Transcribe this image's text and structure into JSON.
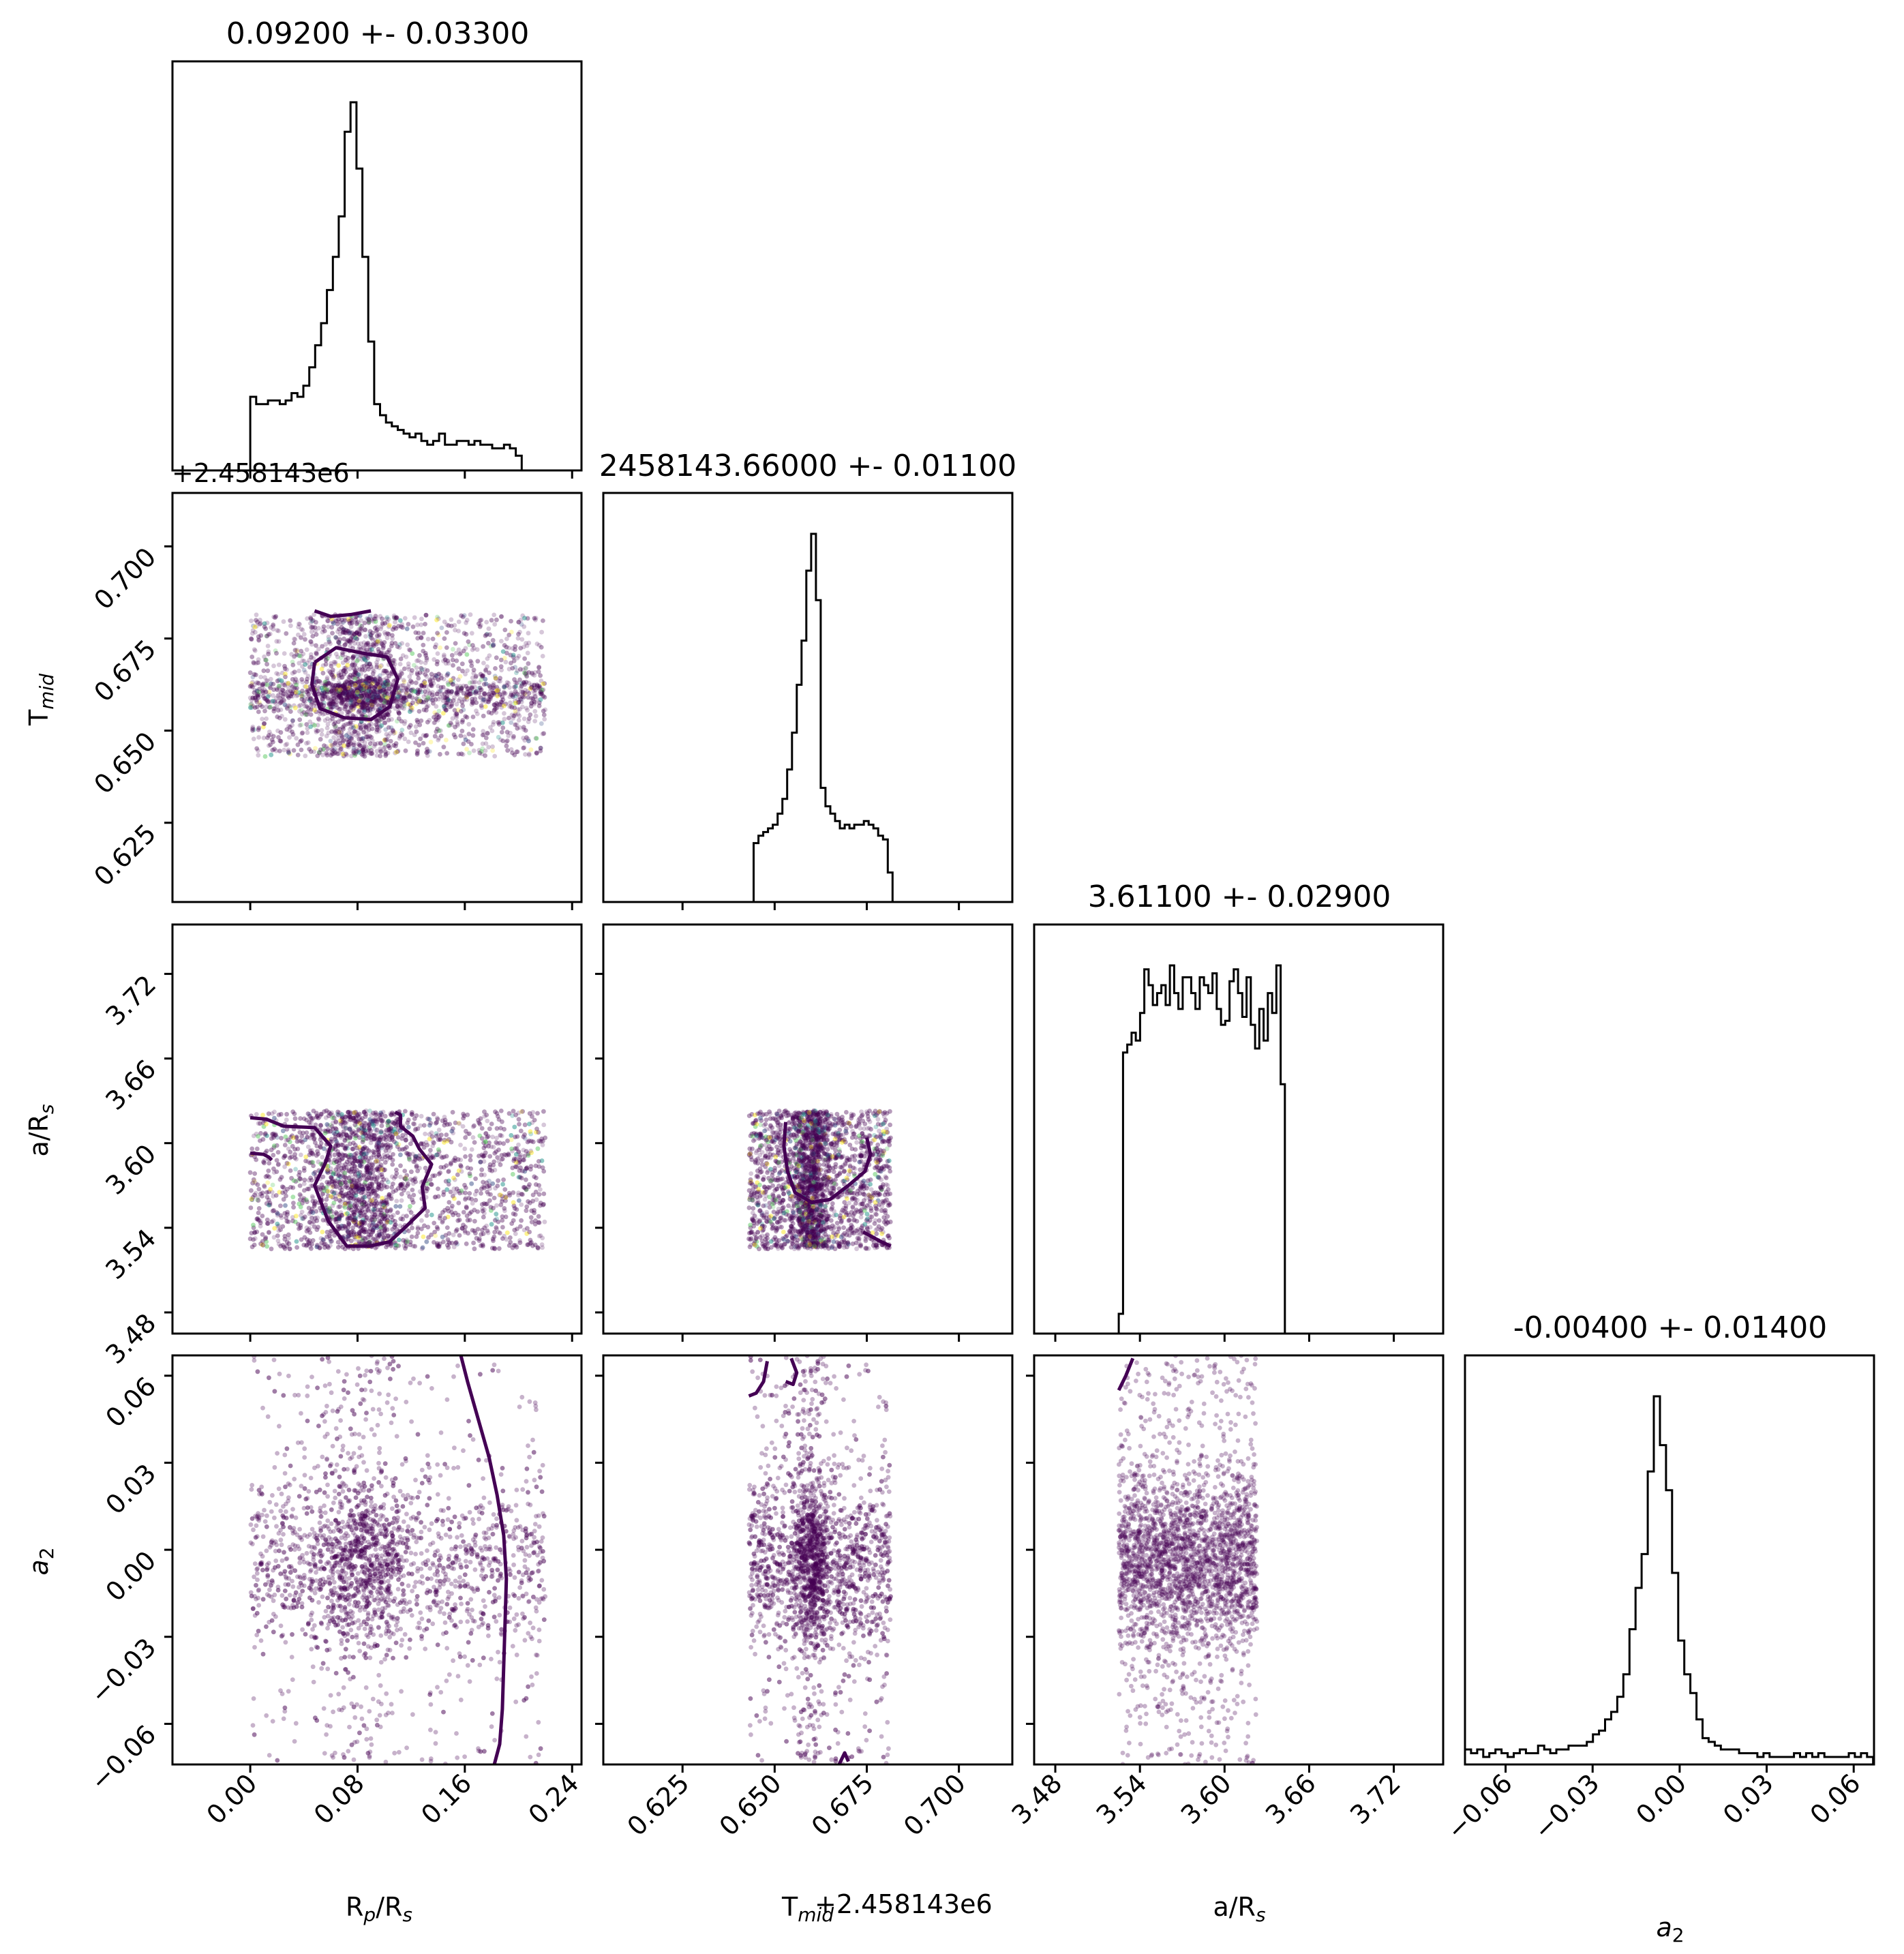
{
  "figure": {
    "title": "",
    "offset_label_x": "+2.458143e6",
    "offset_label_y": "+2.458143e6"
  },
  "colors": {
    "contour": "#440154",
    "scatter_main": "#440154",
    "scatter_speckles": [
      "#3b528b",
      "#21918c",
      "#5ec962",
      "#fde725"
    ],
    "hist_line": "#000000"
  },
  "chart_data": {
    "type": "corner",
    "parameters": [
      {
        "id": "rprs",
        "label": "R_p/R_s",
        "label_display": "Rp/Rs",
        "title": "0.09200 +- 0.03300",
        "range": [
          -0.058,
          0.247
        ],
        "ticks": [
          0.0,
          0.08,
          0.16,
          0.24
        ],
        "tick_labels": [
          "0.00",
          "0.08",
          "0.16",
          "0.24"
        ]
      },
      {
        "id": "tmid",
        "label": "T_mid",
        "label_display": "Tmid",
        "title": "2458143.66000 +- 0.01100",
        "range": [
          0.6035,
          0.7145
        ],
        "ticks": [
          0.625,
          0.65,
          0.675,
          0.7
        ],
        "tick_labels": [
          "0.625",
          "0.650",
          "0.675",
          "0.700"
        ],
        "offset": "+2.458143e6"
      },
      {
        "id": "ars",
        "label": "a/R_s",
        "label_display": "a/Rs",
        "title": "3.61100 +- 0.02900",
        "range": [
          3.465,
          3.755
        ],
        "ticks": [
          3.48,
          3.54,
          3.6,
          3.66,
          3.72
        ],
        "tick_labels": [
          "3.48",
          "3.54",
          "3.60",
          "3.66",
          "3.72"
        ]
      },
      {
        "id": "a2",
        "label": "a_2",
        "label_display": "a2",
        "title": "-0.00400 +- 0.01400",
        "range": [
          -0.074,
          0.067
        ],
        "ticks": [
          -0.06,
          -0.03,
          0.0,
          0.03,
          0.06
        ],
        "tick_labels": [
          "−0.06",
          "−0.03",
          "0.00",
          "0.03",
          "0.06"
        ]
      }
    ],
    "histograms": [
      {
        "param": "rprs",
        "bin_start": 0.0,
        "bin_width": 0.0044,
        "counts": [
          0.2,
          0.18,
          0.18,
          0.19,
          0.19,
          0.18,
          0.19,
          0.21,
          0.2,
          0.23,
          0.28,
          0.34,
          0.4,
          0.49,
          0.58,
          0.69,
          0.92,
          1.0,
          0.82,
          0.58,
          0.35,
          0.18,
          0.15,
          0.13,
          0.12,
          0.11,
          0.1,
          0.09,
          0.1,
          0.08,
          0.07,
          0.08,
          0.1,
          0.07,
          0.07,
          0.08,
          0.08,
          0.07,
          0.08,
          0.07,
          0.07,
          0.06,
          0.06,
          0.07,
          0.06,
          0.04,
          0.0,
          0.0
        ]
      },
      {
        "param": "tmid",
        "bin_start": 0.643,
        "bin_width": 0.0013,
        "counts": [
          0.0,
          0.16,
          0.18,
          0.19,
          0.2,
          0.21,
          0.24,
          0.28,
          0.36,
          0.46,
          0.59,
          0.71,
          0.9,
          1.0,
          0.82,
          0.31,
          0.26,
          0.24,
          0.22,
          0.2,
          0.21,
          0.2,
          0.21,
          0.21,
          0.22,
          0.21,
          0.2,
          0.18,
          0.17,
          0.08,
          0.0
        ]
      },
      {
        "param": "ars",
        "bin_start": 3.525,
        "bin_width": 0.00302,
        "counts": [
          0.05,
          0.71,
          0.73,
          0.76,
          0.74,
          0.81,
          0.92,
          0.88,
          0.83,
          0.86,
          0.88,
          0.83,
          0.93,
          0.86,
          0.82,
          0.9,
          0.9,
          0.86,
          0.82,
          0.9,
          0.88,
          0.86,
          0.91,
          0.82,
          0.78,
          0.79,
          0.89,
          0.92,
          0.86,
          0.8,
          0.9,
          0.78,
          0.72,
          0.82,
          0.74,
          0.86,
          0.81,
          0.93,
          0.63,
          0.0
        ]
      },
      {
        "param": "a2",
        "bin_start": -0.074,
        "bin_width": 0.0021,
        "counts": [
          0.04,
          0.03,
          0.04,
          0.02,
          0.03,
          0.04,
          0.03,
          0.02,
          0.03,
          0.04,
          0.03,
          0.03,
          0.05,
          0.04,
          0.03,
          0.04,
          0.04,
          0.05,
          0.05,
          0.05,
          0.06,
          0.08,
          0.09,
          0.12,
          0.14,
          0.18,
          0.24,
          0.36,
          0.47,
          0.56,
          0.78,
          0.98,
          0.85,
          0.73,
          0.51,
          0.33,
          0.24,
          0.19,
          0.12,
          0.07,
          0.06,
          0.05,
          0.04,
          0.04,
          0.04,
          0.03,
          0.03,
          0.03,
          0.02,
          0.03,
          0.02,
          0.02,
          0.02,
          0.02,
          0.03,
          0.02,
          0.03,
          0.02,
          0.03,
          0.02,
          0.02,
          0.02,
          0.02,
          0.03,
          0.02,
          0.03,
          0.02
        ]
      }
    ],
    "scatter_samples": {
      "rprs": {
        "uniform_range": [
          0.0,
          0.22
        ],
        "core_center": 0.082,
        "core_sigma": 0.018,
        "core_fraction": 0.35
      },
      "tmid": {
        "uniform_range": [
          0.643,
          0.6815
        ],
        "core_center": 0.66,
        "core_sigma": 0.0025,
        "core_fraction": 0.35
      },
      "ars": {
        "uniform_range": [
          3.525,
          3.623
        ]
      },
      "a2": {
        "center": -0.004,
        "sigma": 0.014,
        "tail": 0.25,
        "range": [
          -0.074,
          0.067
        ]
      }
    },
    "contours": [
      {
        "panel": "tmid_vs_rprs",
        "x": [
          0.048,
          0.064,
          0.084,
          0.102,
          0.11,
          0.104,
          0.09,
          0.07,
          0.052,
          0.046,
          0.048
        ],
        "y": [
          0.6685,
          0.6725,
          0.671,
          0.67,
          0.664,
          0.6565,
          0.653,
          0.6535,
          0.656,
          0.6625,
          0.6685
        ]
      },
      {
        "panel": "tmid_vs_rprs",
        "x": [
          0.048,
          0.06,
          0.075,
          0.09
        ],
        "y": [
          0.6825,
          0.681,
          0.6815,
          0.6825
        ]
      },
      {
        "panel": "ars_vs_rprs",
        "x": [
          0.0,
          0.012,
          0.025,
          0.048,
          0.06,
          0.056,
          0.048,
          0.058,
          0.072,
          0.0888,
          0.1038,
          0.1152,
          0.1304,
          0.1282,
          0.1352,
          0.126,
          0.1212,
          0.112,
          0.112,
          0.108
        ],
        "y": [
          3.618,
          3.617,
          3.612,
          3.611,
          3.598,
          3.586,
          3.57,
          3.545,
          3.527,
          3.527,
          3.53,
          3.54,
          3.554,
          3.569,
          3.585,
          3.596,
          3.605,
          3.612,
          3.62,
          3.622
        ]
      },
      {
        "panel": "ars_vs_rprs",
        "x": [
          0.0,
          0.01,
          0.014,
          0.016
        ],
        "y": [
          3.593,
          3.592,
          3.59,
          3.588
        ]
      },
      {
        "panel": "ars_vs_tmid",
        "x": [
          0.653,
          0.6525,
          0.6535,
          0.6555,
          0.66,
          0.665,
          0.67,
          0.6745,
          0.676,
          0.675
        ],
        "y": [
          3.615,
          3.598,
          3.58,
          3.565,
          3.558,
          3.56,
          3.57,
          3.58,
          3.592,
          3.604
        ]
      },
      {
        "panel": "ars_vs_tmid",
        "x": [
          0.674,
          0.679,
          0.6815
        ],
        "y": [
          3.537,
          3.53,
          3.527
        ]
      },
      {
        "panel": "a2_vs_rprs",
        "x": [
          0.157,
          0.162,
          0.17,
          0.178,
          0.184,
          0.189,
          0.191,
          0.19,
          0.189,
          0.188,
          0.186,
          0.182
        ],
        "y": [
          0.067,
          0.058,
          0.045,
          0.032,
          0.019,
          0.005,
          -0.01,
          -0.025,
          -0.04,
          -0.055,
          -0.067,
          -0.074
        ]
      },
      {
        "panel": "a2_vs_tmid",
        "x": [
          0.643,
          0.645,
          0.647,
          0.648
        ],
        "y": [
          0.053,
          0.054,
          0.058,
          0.065
        ]
      },
      {
        "panel": "a2_vs_tmid",
        "x": [
          0.653,
          0.655,
          0.656,
          0.6545
        ],
        "y": [
          0.058,
          0.057,
          0.061,
          0.066
        ]
      },
      {
        "panel": "a2_vs_tmid",
        "x": [
          0.6675,
          0.669,
          0.67
        ],
        "y": [
          -0.074,
          -0.07,
          -0.073
        ]
      },
      {
        "panel": "a2_vs_ars",
        "x": [
          3.525,
          3.53,
          3.535
        ],
        "y": [
          0.055,
          0.06,
          0.066
        ]
      }
    ]
  }
}
